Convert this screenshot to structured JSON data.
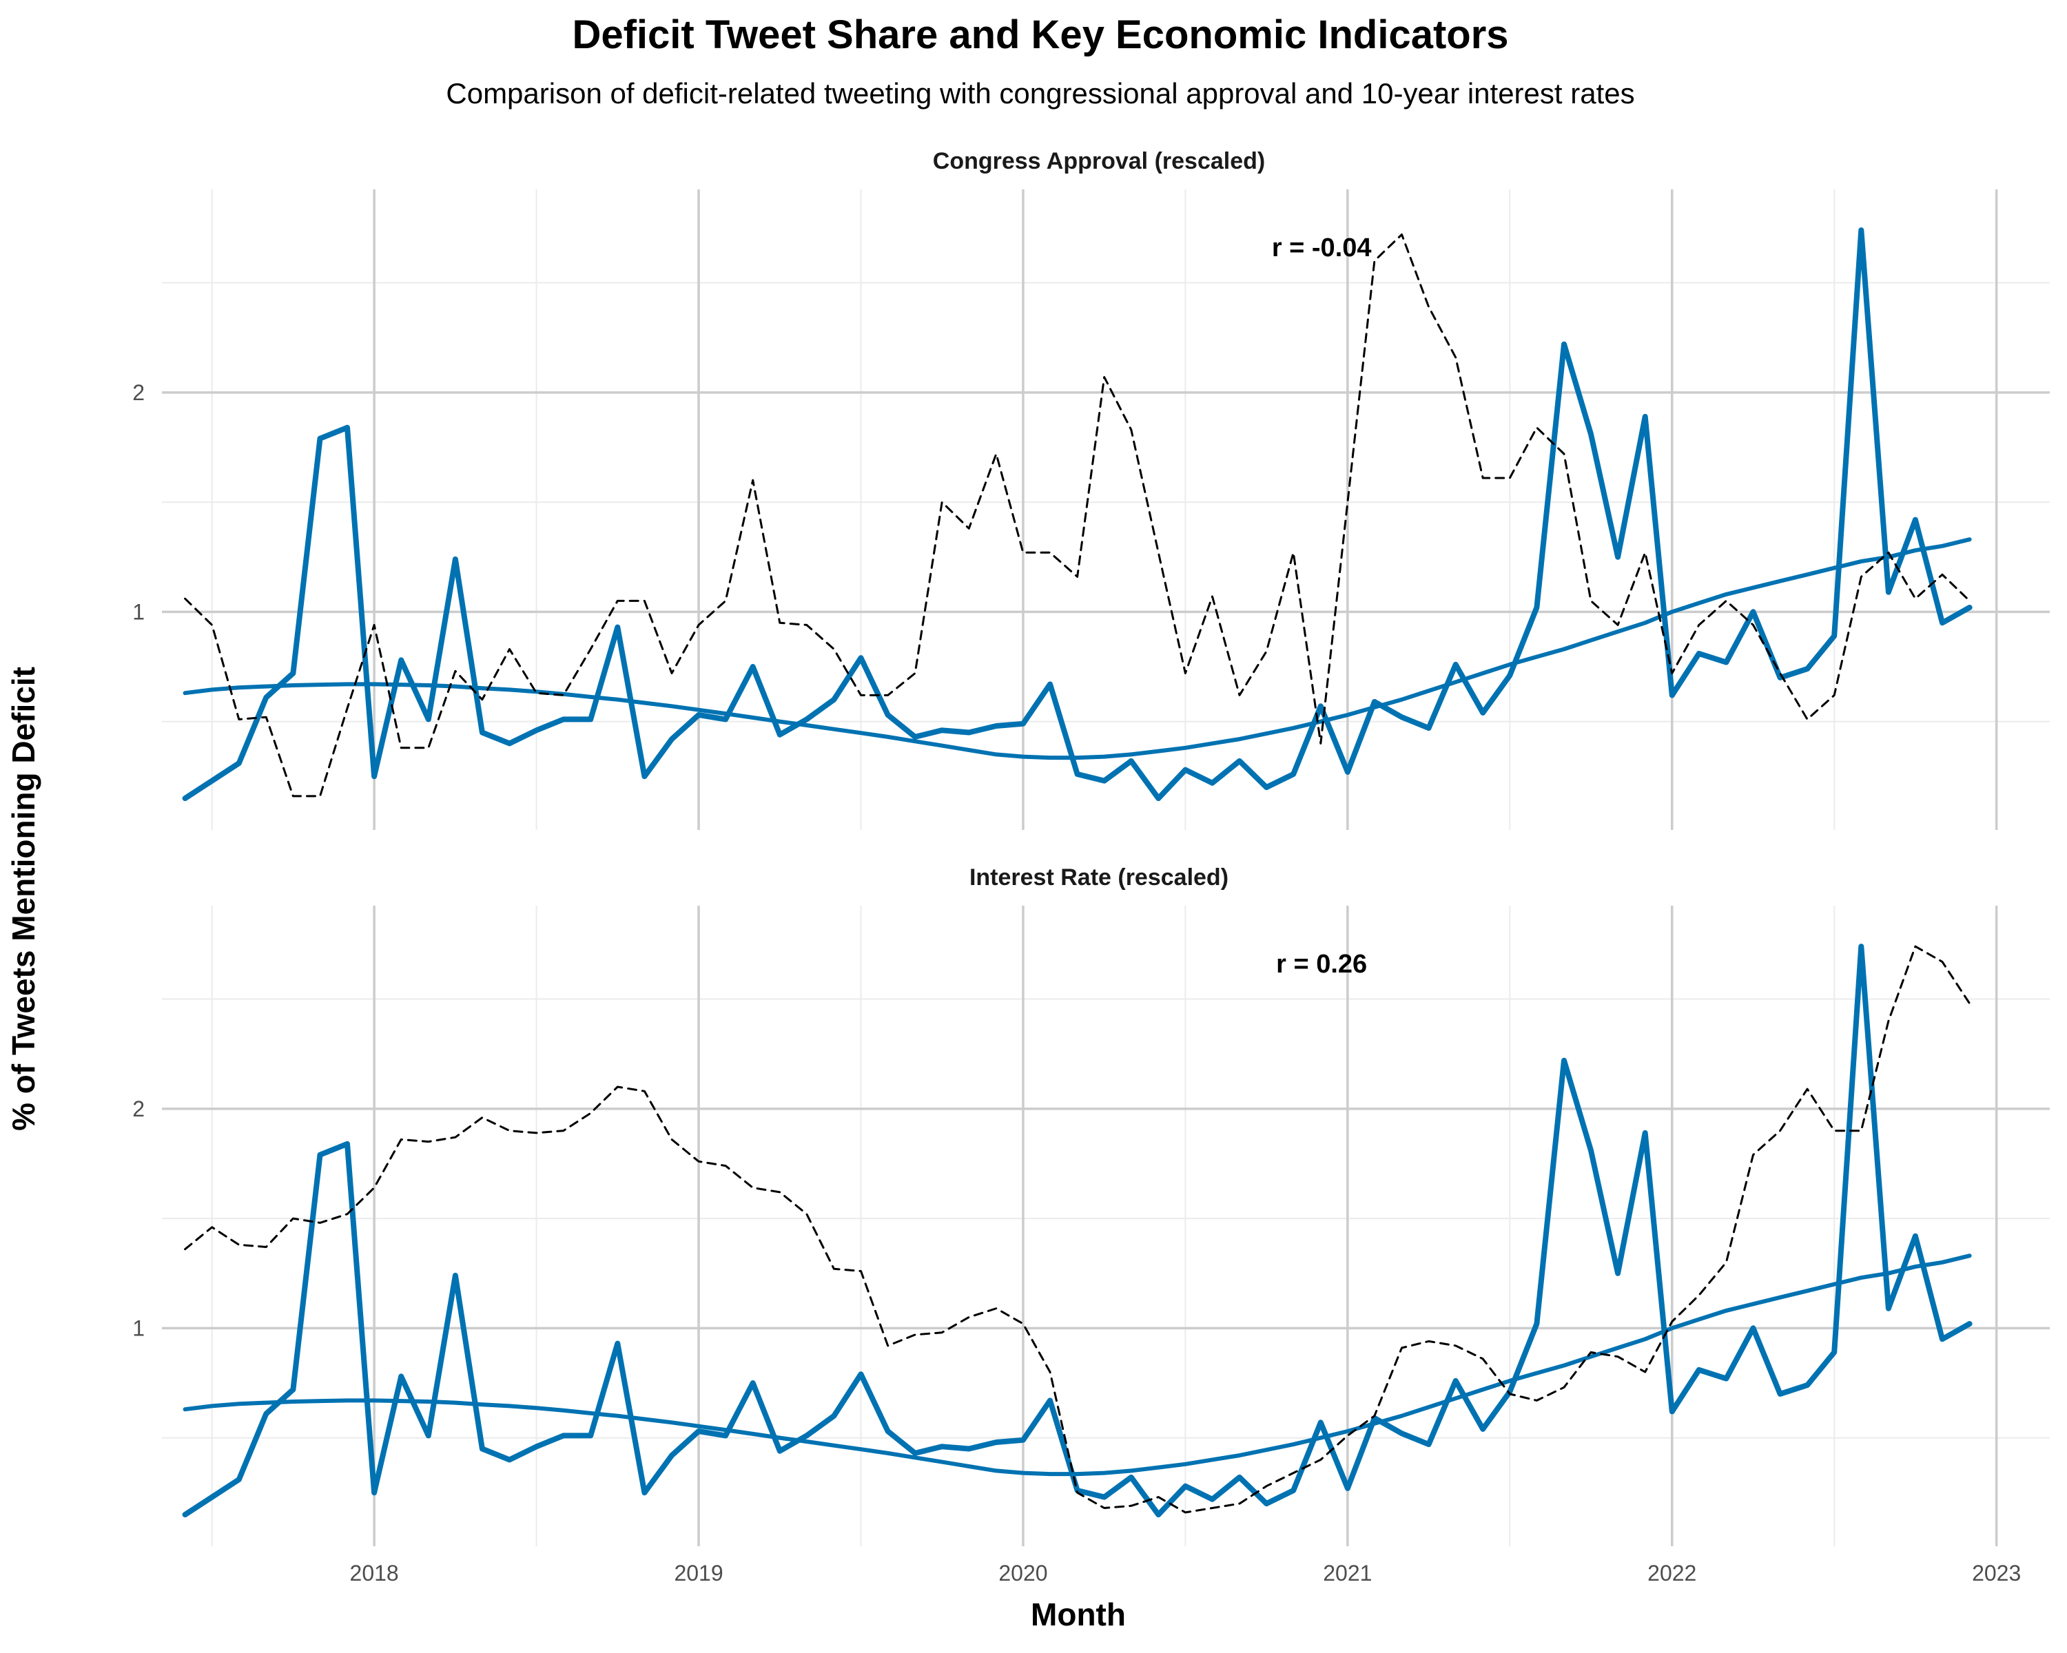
{
  "chart_data": {
    "type": "line",
    "title": "Deficit Tweet Share and Key Economic Indicators",
    "subtitle": "Comparison of deficit-related tweeting with congressional approval and 10-year interest rates",
    "xlabel": "Month",
    "ylabel": "% of Tweets Mentioning Deficit",
    "x_ticks": [
      "2018",
      "2019",
      "2020",
      "2021",
      "2022",
      "2023"
    ],
    "y_ticks": [
      "1",
      "2"
    ],
    "xlim": [
      2017.42,
      2022.92
    ],
    "ylim": [
      0.1,
      2.8
    ],
    "months": [
      2017.417,
      2017.5,
      2017.583,
      2017.667,
      2017.75,
      2017.833,
      2017.917,
      2018.0,
      2018.083,
      2018.167,
      2018.25,
      2018.333,
      2018.417,
      2018.5,
      2018.583,
      2018.667,
      2018.75,
      2018.833,
      2018.917,
      2019.0,
      2019.083,
      2019.167,
      2019.25,
      2019.333,
      2019.417,
      2019.5,
      2019.583,
      2019.667,
      2019.75,
      2019.833,
      2019.917,
      2020.0,
      2020.083,
      2020.167,
      2020.25,
      2020.333,
      2020.417,
      2020.5,
      2020.583,
      2020.667,
      2020.75,
      2020.833,
      2020.917,
      2021.0,
      2021.083,
      2021.167,
      2021.25,
      2021.333,
      2021.417,
      2021.5,
      2021.583,
      2021.667,
      2021.75,
      2021.833,
      2021.917,
      2022.0,
      2022.083,
      2022.167,
      2022.25,
      2022.333,
      2022.417,
      2022.5,
      2022.583,
      2022.667,
      2022.75,
      2022.833,
      2022.917
    ],
    "deficit_share": [
      0.15,
      0.23,
      0.31,
      0.61,
      0.72,
      1.79,
      1.84,
      0.25,
      0.78,
      0.51,
      1.24,
      0.45,
      0.4,
      0.46,
      0.51,
      0.51,
      0.93,
      0.25,
      0.42,
      0.53,
      0.51,
      0.75,
      0.44,
      0.51,
      0.6,
      0.79,
      0.53,
      0.43,
      0.46,
      0.45,
      0.48,
      0.49,
      0.67,
      0.26,
      0.23,
      0.32,
      0.15,
      0.28,
      0.22,
      0.32,
      0.2,
      0.26,
      0.57,
      0.27,
      0.59,
      0.52,
      0.47,
      0.76,
      0.54,
      0.71,
      1.02,
      2.22,
      1.81,
      1.25,
      1.89,
      0.62,
      0.81,
      0.77,
      1.0,
      0.7,
      0.74,
      0.89,
      2.74,
      1.09,
      1.42,
      0.95,
      1.02
    ],
    "panels": [
      {
        "strip_label": "Congress Approval (rescaled)",
        "correlation_label": "r = -0.04",
        "series": [
          {
            "name": "% of Tweets Mentioning Deficit",
            "style": "solid",
            "color": "#0072b2",
            "values_ref": "deficit_share"
          },
          {
            "name": "LOESS trend",
            "style": "smooth",
            "color": "#0072b2",
            "values": [
              0.63,
              0.645,
              0.655,
              0.66,
              0.665,
              0.668,
              0.67,
              0.67,
              0.668,
              0.665,
              0.66,
              0.652,
              0.645,
              0.636,
              0.625,
              0.612,
              0.6,
              0.585,
              0.57,
              0.553,
              0.536,
              0.518,
              0.5,
              0.483,
              0.465,
              0.448,
              0.43,
              0.41,
              0.39,
              0.37,
              0.35,
              0.34,
              0.335,
              0.335,
              0.34,
              0.35,
              0.365,
              0.38,
              0.4,
              0.42,
              0.445,
              0.47,
              0.5,
              0.53,
              0.565,
              0.6,
              0.64,
              0.68,
              0.72,
              0.76,
              0.795,
              0.83,
              0.87,
              0.91,
              0.95,
              1.0,
              1.04,
              1.08,
              1.11,
              1.14,
              1.17,
              1.2,
              1.23,
              1.25,
              1.28,
              1.3,
              1.33
            ]
          },
          {
            "name": "Congress Approval (rescaled)",
            "style": "dashed",
            "color": "#000000",
            "values": [
              1.06,
              0.94,
              0.51,
              0.52,
              0.16,
              0.16,
              0.56,
              0.94,
              0.38,
              0.38,
              0.73,
              0.6,
              0.83,
              0.63,
              0.62,
              0.83,
              1.05,
              1.05,
              0.72,
              0.94,
              1.05,
              1.6,
              0.95,
              0.94,
              0.83,
              0.62,
              0.62,
              0.72,
              1.5,
              1.38,
              1.72,
              1.27,
              1.27,
              1.16,
              2.07,
              1.83,
              1.27,
              0.72,
              1.07,
              0.62,
              0.82,
              1.27,
              0.4,
              1.5,
              2.6,
              2.72,
              2.39,
              2.16,
              1.61,
              1.61,
              1.84,
              1.72,
              1.05,
              0.94,
              1.27,
              0.72,
              0.94,
              1.05,
              0.94,
              0.72,
              0.51,
              0.62,
              1.16,
              1.27,
              1.06,
              1.17,
              1.05
            ]
          }
        ]
      },
      {
        "strip_label": "Interest Rate (rescaled)",
        "correlation_label": "r = 0.26",
        "series": [
          {
            "name": "% of Tweets Mentioning Deficit",
            "style": "solid",
            "color": "#0072b2",
            "values_ref": "deficit_share"
          },
          {
            "name": "LOESS trend",
            "style": "smooth",
            "color": "#0072b2",
            "values": [
              0.63,
              0.645,
              0.655,
              0.66,
              0.665,
              0.668,
              0.67,
              0.67,
              0.668,
              0.665,
              0.66,
              0.652,
              0.645,
              0.636,
              0.625,
              0.612,
              0.6,
              0.585,
              0.57,
              0.553,
              0.536,
              0.518,
              0.5,
              0.483,
              0.465,
              0.448,
              0.43,
              0.41,
              0.39,
              0.37,
              0.35,
              0.34,
              0.335,
              0.335,
              0.34,
              0.35,
              0.365,
              0.38,
              0.4,
              0.42,
              0.445,
              0.47,
              0.5,
              0.53,
              0.565,
              0.6,
              0.64,
              0.68,
              0.72,
              0.76,
              0.795,
              0.83,
              0.87,
              0.91,
              0.95,
              1.0,
              1.04,
              1.08,
              1.11,
              1.14,
              1.17,
              1.2,
              1.23,
              1.25,
              1.28,
              1.3,
              1.33
            ]
          },
          {
            "name": "Interest Rate (rescaled)",
            "style": "dashed",
            "color": "#000000",
            "values": [
              1.36,
              1.46,
              1.38,
              1.37,
              1.5,
              1.48,
              1.52,
              1.64,
              1.86,
              1.85,
              1.87,
              1.96,
              1.9,
              1.89,
              1.9,
              1.98,
              2.1,
              2.08,
              1.86,
              1.76,
              1.74,
              1.64,
              1.62,
              1.52,
              1.27,
              1.26,
              0.92,
              0.97,
              0.98,
              1.05,
              1.09,
              1.02,
              0.8,
              0.25,
              0.18,
              0.19,
              0.23,
              0.16,
              0.18,
              0.2,
              0.28,
              0.34,
              0.4,
              0.51,
              0.6,
              0.91,
              0.94,
              0.92,
              0.86,
              0.7,
              0.67,
              0.73,
              0.89,
              0.87,
              0.8,
              1.03,
              1.15,
              1.3,
              1.79,
              1.9,
              2.09,
              1.9,
              1.9,
              2.4,
              2.74,
              2.67,
              2.48
            ]
          }
        ]
      }
    ]
  }
}
